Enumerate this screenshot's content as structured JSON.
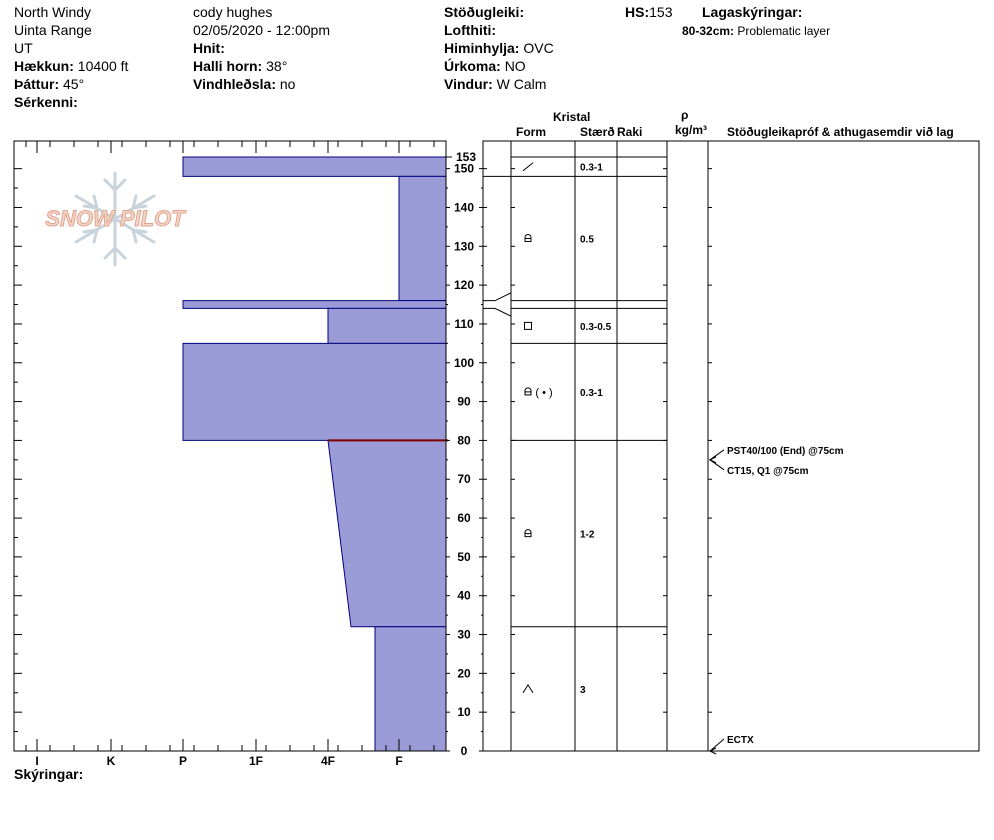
{
  "header": {
    "location_name": "North Windy",
    "range": "Uinta Range",
    "state": "UT",
    "elevation_label": "Hækkun:",
    "elevation_value": "10400 ft",
    "aspect_label": "Þáttur:",
    "aspect_value": "45°",
    "features_label": "Sérkenni:",
    "observer": "cody hughes",
    "datetime": "02/05/2020 - 12:00pm",
    "coords_label": "Hnit:",
    "slope_label": "Halli horn:",
    "slope_value": "38°",
    "wind_loading_label": "Vindhleðsla:",
    "wind_loading_value": "no",
    "stability_label": "Stöðugleiki:",
    "air_temp_label": "Lofthiti:",
    "sky_label": "Himinhylja:",
    "sky_value": "OVC",
    "precip_label": "Úrkoma:",
    "precip_value": "NO",
    "wind_label": "Vindur:",
    "wind_value": "W Calm",
    "hs_label": "HS:",
    "hs_value": "153",
    "layer_notes_label": "Lagaskýringar:",
    "layer_note_range": "80-32cm:",
    "layer_note_text": "Problematic layer"
  },
  "columns": {
    "crystal": "Kristal",
    "form": "Form",
    "size": "Stærð",
    "moisture": "Raki",
    "rho": "ρ",
    "density_unit": "kg/m³",
    "tests": "Stöðugleikapróf & athugasemdir við lag"
  },
  "footer": {
    "legend_label": "Skýringar:"
  },
  "logo_text": "SNOW PILOT",
  "colors": {
    "fill": "#9b9bd7",
    "stroke": "#00007f",
    "problem_line": "#7f0000"
  },
  "chart_data": {
    "type": "bar",
    "orientation": "horizontal",
    "hardness_scale": [
      "I",
      "K",
      "P",
      "1F",
      "4F",
      "F"
    ],
    "y_ticks": [
      0,
      10,
      20,
      30,
      40,
      50,
      60,
      70,
      80,
      90,
      100,
      110,
      120,
      130,
      140,
      150
    ],
    "y_top_label": "153",
    "ylim": [
      0,
      153
    ],
    "layers": [
      {
        "top": 153,
        "bottom": 148,
        "hardness_top": "P",
        "hardness_bottom": "P",
        "form": "slash",
        "size": "0.3-1"
      },
      {
        "top": 148,
        "bottom": 116,
        "hardness_top": "F",
        "hardness_bottom": "F",
        "form": "rounded",
        "size": "0.5"
      },
      {
        "top": 116,
        "bottom": 114,
        "hardness_top": "P",
        "hardness_bottom": "P",
        "form": "",
        "size": ""
      },
      {
        "top": 114,
        "bottom": 105,
        "hardness_top": "4F",
        "hardness_bottom": "4F",
        "form": "square",
        "size": "0.3-0.5"
      },
      {
        "top": 105,
        "bottom": 80,
        "hardness_top": "P",
        "hardness_bottom": "P",
        "form": "rounded-dot",
        "size": "0.3-1"
      },
      {
        "top": 80,
        "bottom": 32,
        "hardness_top": "4F",
        "hardness_bottom": "1F-4F",
        "form": "rounded",
        "size": "1-2"
      },
      {
        "top": 32,
        "bottom": 0,
        "hardness_top": "1F-4F",
        "hardness_bottom": "1F-4F",
        "form": "depth-hoar",
        "size": "3"
      }
    ],
    "problem_layer_depth": 80,
    "tests": [
      {
        "depth": 75,
        "label": "PST40/100 (End) @75cm"
      },
      {
        "depth": 75,
        "label": "CT15, Q1 @75cm"
      },
      {
        "depth": 0,
        "label": "ECTX"
      }
    ]
  }
}
